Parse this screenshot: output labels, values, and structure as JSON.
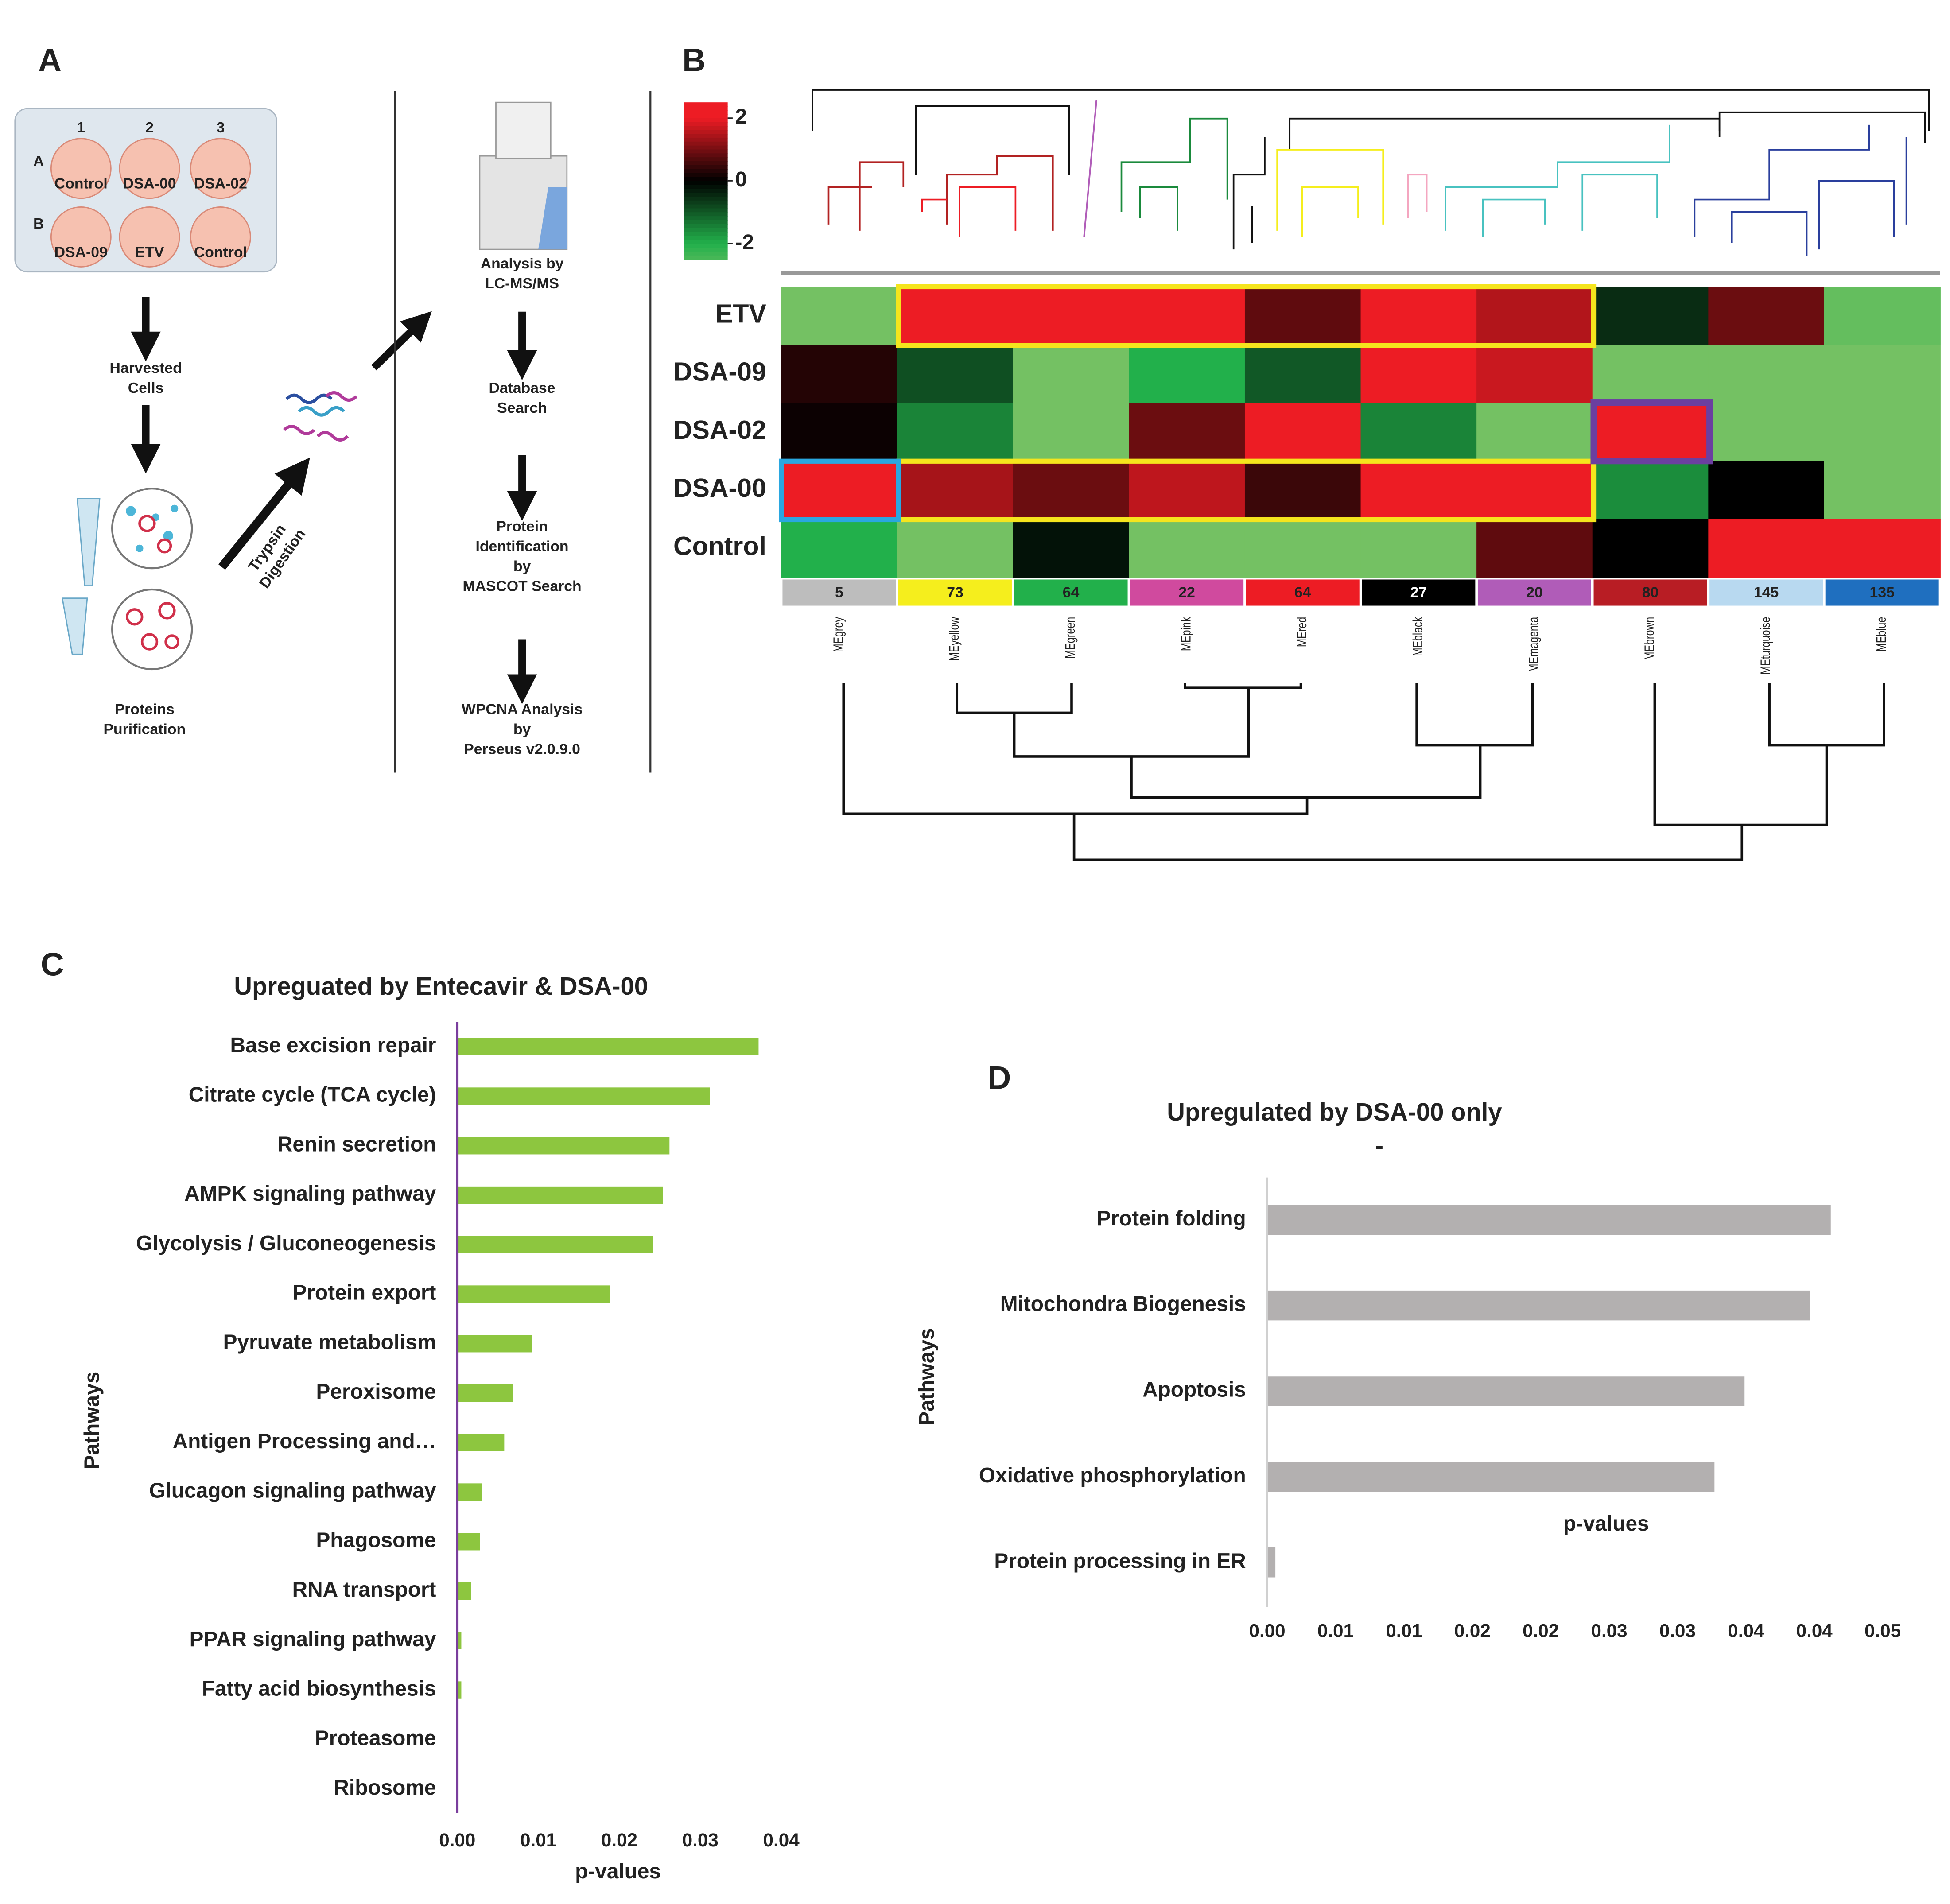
{
  "panel_a": {
    "label": "A",
    "plate": {
      "columns": [
        "1",
        "2",
        "3"
      ],
      "rows": [
        "A",
        "B"
      ],
      "wells": [
        "Control",
        "DSA-00",
        "DSA-02",
        "DSA-09",
        "ETV",
        "Control"
      ]
    },
    "harvest": [
      "Harvested",
      "Cells"
    ],
    "purification": [
      "Proteins",
      "Purification"
    ],
    "digestion": [
      "Trypsin",
      "Digestion"
    ],
    "steps": [
      [
        "Analysis by",
        "LC-MS/MS"
      ],
      [
        "Database",
        "Search"
      ],
      [
        "Protein",
        "Identification",
        "by",
        "MASCOT Search"
      ],
      [
        "WPCNA Analysis",
        "by",
        "Perseus v2.0.9.0"
      ]
    ]
  },
  "chart_data": [
    {
      "type": "heatmap",
      "panel": "B",
      "rows": [
        "ETV",
        "DSA-09",
        "DSA-02",
        "DSA-00",
        "Control"
      ],
      "columns": [
        "MEgrey",
        "MEyellow",
        "MEgreen",
        "MEpink",
        "MEred",
        "MEblack",
        "MEmagenta",
        "MEbrown",
        "MEturquoise",
        "MEblue"
      ],
      "module_sizes": [
        5,
        73,
        64,
        22,
        64,
        27,
        20,
        80,
        145,
        135
      ],
      "module_colors": [
        "#bdbdbd",
        "#f5ee1d",
        "#22b04b",
        "#d04a9e",
        "#ed1c24",
        "#000000",
        "#b05cb8",
        "#b81d24",
        "#b8d9f0",
        "#1f6fbf"
      ],
      "values": [
        [
          -3,
          2,
          2,
          2,
          0.8,
          2,
          1.5,
          -0.5,
          0.9,
          -2.8
        ],
        [
          0.3,
          -0.9,
          -3,
          -2,
          -1,
          2,
          1.7,
          -3,
          -3,
          -3
        ],
        [
          0.1,
          -1.5,
          -3,
          0.9,
          2,
          -1.5,
          -3,
          2,
          -3,
          -3
        ],
        [
          2,
          1.4,
          0.9,
          1.6,
          0.5,
          2,
          2,
          -1.6,
          0,
          -3
        ],
        [
          -2,
          -3,
          -0.2,
          -3,
          -3,
          -3,
          0.8,
          0,
          2,
          2
        ]
      ],
      "colormap": [
        [
          -3,
          "#74c163"
        ],
        [
          -2,
          "#22b04b"
        ],
        [
          0,
          "#000000"
        ],
        [
          2,
          "#ed1c24"
        ]
      ],
      "ylim": [
        -2.5,
        2.5
      ],
      "yticks": [
        -2,
        0,
        2
      ]
    },
    {
      "type": "bar",
      "orientation": "horizontal",
      "panel": "C",
      "title": "Upreguated by Entecavir & DSA-00",
      "x_label": "p-values",
      "y_label": "Pathways",
      "categories": [
        "Base excision repair",
        "Citrate cycle (TCA cycle)",
        "Renin secretion",
        "AMPK signaling pathway",
        "Glycolysis / Gluconeogenesis",
        "Protein export",
        "Pyruvate metabolism",
        "Peroxisome",
        "Antigen Processing and…",
        "Glucagon signaling pathway",
        "Phagosome",
        "RNA transport",
        "PPAR signaling pathway",
        "Fatty acid biosynthesis",
        "Proteasome",
        "Ribosome"
      ],
      "values": [
        0.0372,
        0.0312,
        0.0262,
        0.0254,
        0.0242,
        0.0189,
        0.0092,
        0.0069,
        0.0058,
        0.0031,
        0.0028,
        0.0017,
        0.0005,
        0.0005,
        0,
        0
      ],
      "color": "#8dc63f",
      "axis_color": "#7a3e9d",
      "xlim": [
        0,
        0.04
      ],
      "xticks": [
        {
          "value": 0,
          "label": "0.00"
        },
        {
          "value": 0.01,
          "label": "0.01"
        },
        {
          "value": 0.02,
          "label": "0.02"
        },
        {
          "value": 0.03,
          "label": "0.03"
        },
        {
          "value": 0.04,
          "label": "0.04"
        }
      ]
    },
    {
      "type": "bar",
      "orientation": "horizontal",
      "panel": "D",
      "title": "Upregulated by DSA-00 only",
      "subtitle": "-",
      "x_label": "p-values",
      "y_label": "Pathways",
      "categories": [
        "Protein folding",
        "Mitochondra Biogenesis",
        "Apoptosis",
        "Oxidative phosphorylation",
        "Protein processing in ER"
      ],
      "values": [
        0.0412,
        0.0397,
        0.0349,
        0.0327,
        0.0006
      ],
      "color": "#b3b0b0",
      "axis_color": "#d0d0d0",
      "xlim": [
        0,
        0.045
      ],
      "xticks": [
        {
          "value": 0,
          "label": "0.00"
        },
        {
          "value": 0.005,
          "label": "0.01"
        },
        {
          "value": 0.01,
          "label": "0.01"
        },
        {
          "value": 0.015,
          "label": "0.02"
        },
        {
          "value": 0.02,
          "label": "0.02"
        },
        {
          "value": 0.025,
          "label": "0.03"
        },
        {
          "value": 0.03,
          "label": "0.03"
        },
        {
          "value": 0.035,
          "label": "0.04"
        },
        {
          "value": 0.04,
          "label": "0.04"
        },
        {
          "value": 0.045,
          "label": "0.05"
        }
      ]
    }
  ]
}
